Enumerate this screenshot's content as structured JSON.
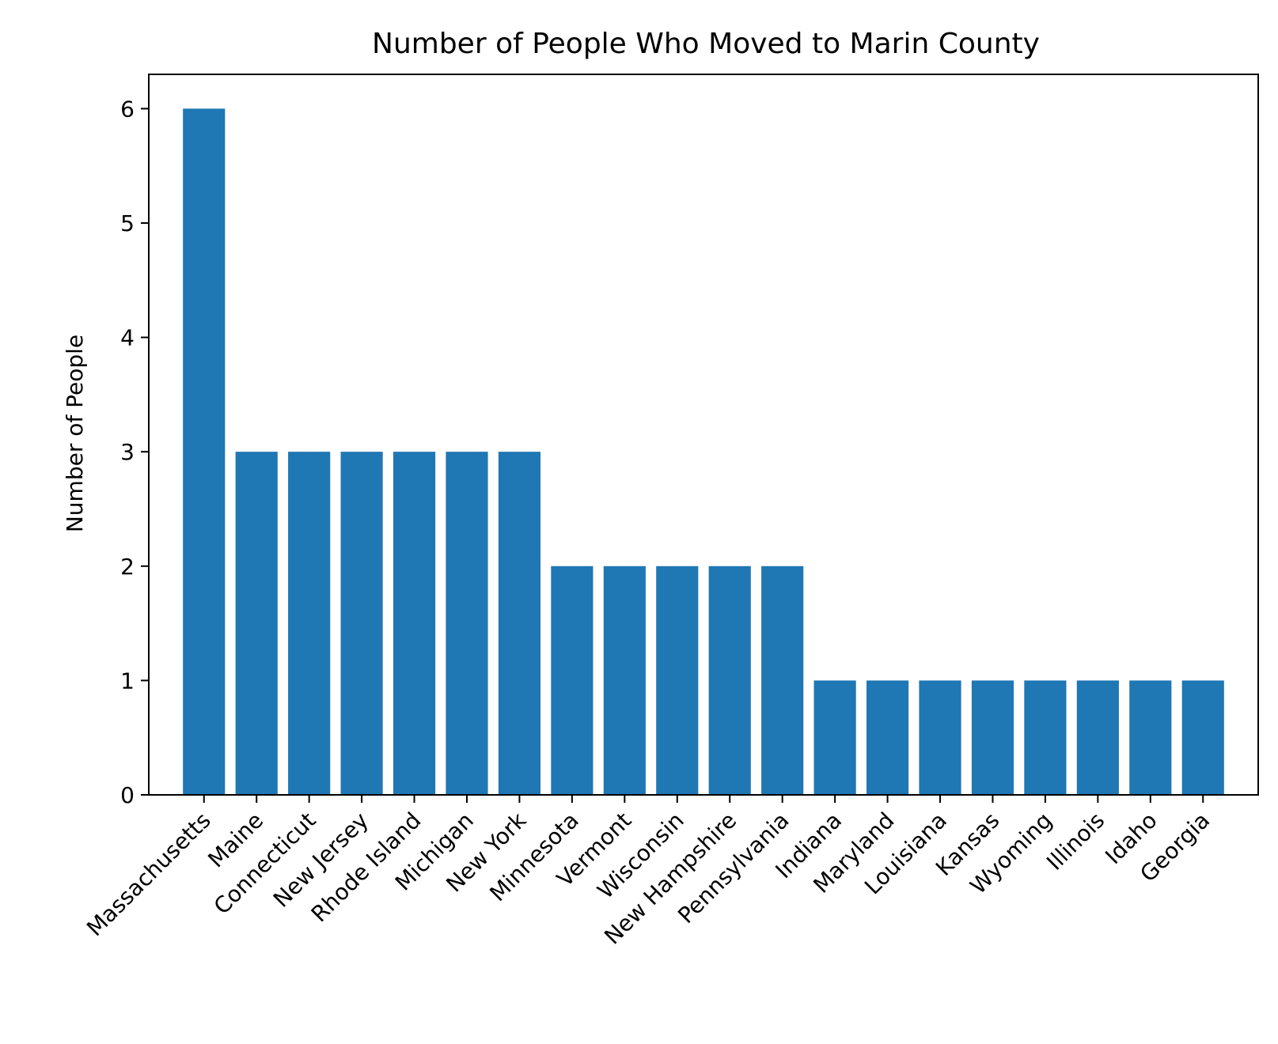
{
  "chart_data": {
    "type": "bar",
    "title": "Number of People Who Moved to Marin County",
    "xlabel": "",
    "ylabel": "Number of People",
    "categories": [
      "Massachusetts",
      "Maine",
      "Connecticut",
      "New Jersey",
      "Rhode Island",
      "Michigan",
      "New York",
      "Minnesota",
      "Vermont",
      "Wisconsin",
      "New Hampshire",
      "Pennsylvania",
      "Indiana",
      "Maryland",
      "Louisiana",
      "Kansas",
      "Wyoming",
      "Illinois",
      "Idaho",
      "Georgia"
    ],
    "values": [
      6,
      3,
      3,
      3,
      3,
      3,
      3,
      2,
      2,
      2,
      2,
      2,
      1,
      1,
      1,
      1,
      1,
      1,
      1,
      1
    ],
    "ylim": [
      0,
      6.3
    ],
    "yticks": [
      0,
      1,
      2,
      3,
      4,
      5,
      6
    ],
    "grid": false,
    "legend": "none",
    "bar_color": "#1f77b4"
  }
}
